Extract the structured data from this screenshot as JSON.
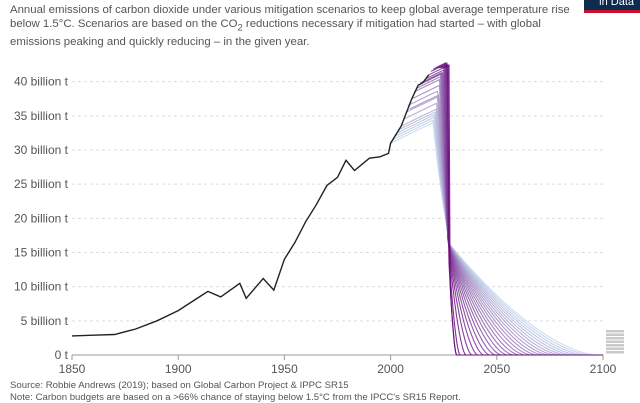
{
  "subtitle_pre": "Annual emissions of carbon dioxide under various mitigation scenarios to keep global average temperature rise below 1.5°C. Scenarios are based on the CO",
  "subtitle_sub": "2",
  "subtitle_post": " reductions necessary if mitigation had started – with global emissions peaking and quickly reducing – in the given year.",
  "logo_text": "in Data",
  "source": "Source: Robbie Andrews (2019); based on Global Carbon Project & IPPC SR15",
  "note": "Note: Carbon budgets are based on a >66% chance of staying below 1.5°C from the IPCC's SR15 Report.",
  "colors": {
    "historical": "#222222",
    "scenario_early": "#c6dbef",
    "scenario_late": "#6a0a7c",
    "grid": "#dddddd"
  },
  "chart_data": {
    "type": "line",
    "xlim": [
      1850,
      2100
    ],
    "ylim": [
      0,
      42
    ],
    "x_ticks": [
      1850,
      1900,
      1950,
      2000,
      2050,
      2100
    ],
    "y_ticks": [
      {
        "value": 0,
        "label": "0 t"
      },
      {
        "value": 5,
        "label": "5 billion t"
      },
      {
        "value": 10,
        "label": "10 billion t"
      },
      {
        "value": 15,
        "label": "15 billion t"
      },
      {
        "value": 20,
        "label": "20 billion t"
      },
      {
        "value": 25,
        "label": "25 billion t"
      },
      {
        "value": 30,
        "label": "30 billion t"
      },
      {
        "value": 35,
        "label": "35 billion t"
      },
      {
        "value": 40,
        "label": "40 billion t"
      }
    ],
    "historical": {
      "x": [
        1850,
        1860,
        1870,
        1880,
        1890,
        1900,
        1910,
        1914,
        1920,
        1929,
        1932,
        1940,
        1945,
        1950,
        1955,
        1960,
        1965,
        1970,
        1975,
        1979,
        1983,
        1990,
        1995,
        1999,
        2000,
        2005,
        2010,
        2013,
        2015,
        2018
      ],
      "y": [
        2.8,
        2.9,
        3.0,
        3.8,
        5.0,
        6.5,
        8.5,
        9.3,
        8.5,
        10.5,
        8.3,
        11.2,
        9.5,
        14.0,
        16.5,
        19.5,
        22.0,
        24.8,
        26.0,
        28.5,
        27.0,
        28.8,
        29.0,
        29.5,
        31.0,
        33.5,
        37.5,
        39.5,
        39.8,
        41.0
      ]
    },
    "scenarios": {
      "peak_years": [
        2000,
        2001,
        2002,
        2003,
        2004,
        2005,
        2006,
        2007,
        2008,
        2009,
        2010,
        2011,
        2012,
        2013,
        2014,
        2015,
        2016,
        2017,
        2018,
        2019,
        2020,
        2021,
        2022,
        2023,
        2024,
        2025
      ],
      "peak_values": [
        31.0,
        31.5,
        32.0,
        32.5,
        33.0,
        33.5,
        34.5,
        35.5,
        36.5,
        36.0,
        37.5,
        38.5,
        39.0,
        39.5,
        39.8,
        39.8,
        40.0,
        40.5,
        41.0,
        41.5,
        41.8,
        42.0,
        42.0,
        42.0,
        42.0,
        42.0
      ],
      "crossing": {
        "x": 2027,
        "y": 16.5
      }
    }
  }
}
